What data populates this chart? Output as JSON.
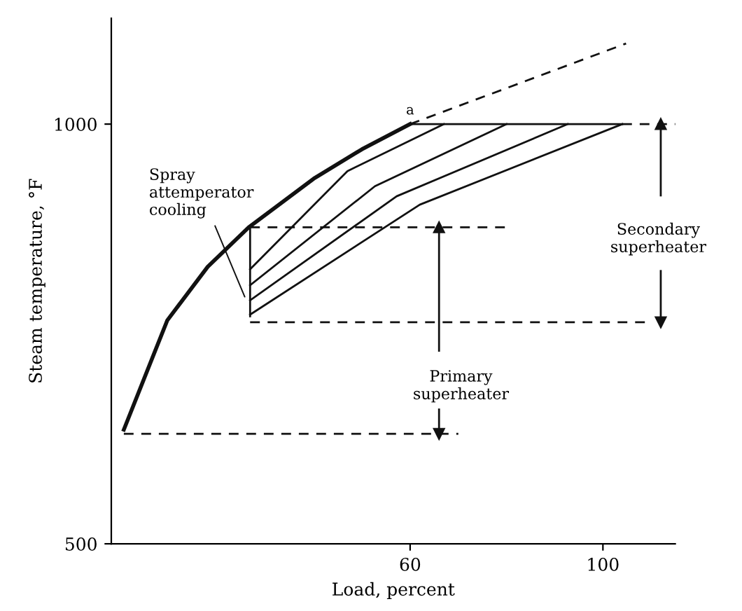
{
  "chart_data": {
    "type": "line",
    "xlabel": "Load, percent",
    "ylabel": "Steam temperature, °F",
    "xlim": [
      -2,
      115
    ],
    "ylim": [
      500,
      1126
    ],
    "xticks": [
      60,
      100
    ],
    "yticks": [
      500,
      1000
    ],
    "grid": false,
    "series": [
      {
        "color": "#111111",
        "x": [
          0.6,
          9.6,
          18,
          26.5,
          40,
          50,
          60
        ],
        "values": [
          636,
          766,
          830,
          877,
          935,
          970,
          1000
        ],
        "line_style": "solid"
      },
      {
        "color": "#111111",
        "x": [
          60,
          104.8
        ],
        "values": [
          1000,
          1096
        ],
        "line_style": "dashed"
      },
      {
        "color": "#111111",
        "x": [
          60,
          104
        ],
        "values": [
          1000,
          1000
        ],
        "line_style": "solid"
      },
      {
        "color": "#111111",
        "x": [
          26.8,
          26.8
        ],
        "values": [
          877,
          771
        ],
        "line_style": "solid"
      },
      {
        "color": "#111111",
        "x": [
          26.8,
          47,
          67
        ],
        "values": [
          827,
          944,
          1000
        ],
        "line_style": "solid"
      },
      {
        "color": "#111111",
        "x": [
          26.8,
          52.7,
          80
        ],
        "values": [
          808,
          926,
          1000
        ],
        "line_style": "solid"
      },
      {
        "color": "#111111",
        "x": [
          26.8,
          57.2,
          92.7
        ],
        "values": [
          790,
          914,
          1000
        ],
        "line_style": "solid"
      },
      {
        "color": "#111111",
        "x": [
          26.8,
          62,
          104
        ],
        "values": [
          773,
          904,
          1000
        ],
        "line_style": "solid"
      },
      {
        "color": "#111111",
        "x": [
          26.8,
          80
        ],
        "values": [
          877,
          877
        ],
        "line_style": "dashed"
      },
      {
        "color": "#111111",
        "x": [
          26.8,
          110
        ],
        "values": [
          764,
          764
        ],
        "line_style": "dashed"
      },
      {
        "color": "#111111",
        "x": [
          104,
          115
        ],
        "values": [
          1000,
          1000
        ],
        "line_style": "dashed"
      },
      {
        "color": "#111111",
        "x": [
          0.6,
          70
        ],
        "values": [
          631,
          631
        ],
        "line_style": "dashed"
      },
      {
        "color": "#111111",
        "x": [
          66,
          66
        ],
        "values": [
          730,
          877
        ],
        "line_style": "solid",
        "marker": "triangle"
      },
      {
        "color": "#111111",
        "x": [
          66,
          66
        ],
        "values": [
          660,
          631
        ],
        "line_style": "solid",
        "marker": "triangle"
      },
      {
        "color": "#111111",
        "x": [
          112,
          112
        ],
        "values": [
          915,
          1000
        ],
        "line_style": "solid",
        "marker": "triangle"
      },
      {
        "color": "#111111",
        "x": [
          112,
          112
        ],
        "values": [
          825,
          764
        ],
        "line_style": "solid",
        "marker": "triangle"
      }
    ],
    "annotations": [
      {
        "text": "a",
        "x": 60,
        "y": 1000
      },
      "Primary\nsuperheater",
      "Secondary\nsuperheater",
      {
        "text": "Spray\nattemperator\ncooling",
        "x": 26,
        "y": 790
      }
    ]
  }
}
